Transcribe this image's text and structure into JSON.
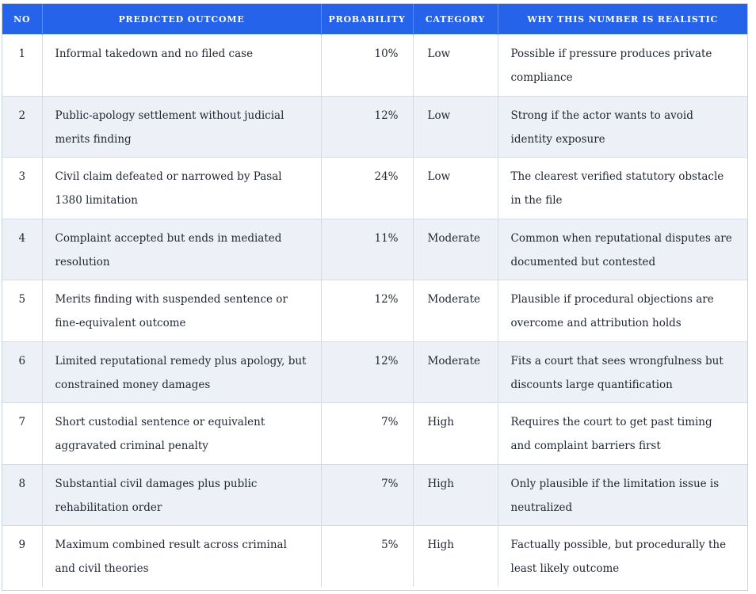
{
  "table": {
    "headers": [
      "NO",
      "PREDICTED OUTCOME",
      "PROBABILITY",
      "CATEGORY",
      "WHY THIS NUMBER IS REALISTIC"
    ],
    "rows": [
      {
        "no": "1",
        "outcome": "Informal takedown and no filed case",
        "probability": "10%",
        "category": "Low",
        "why": "Possible if pressure produces private compliance"
      },
      {
        "no": "2",
        "outcome": "Public-apology settlement without judicial merits finding",
        "probability": "12%",
        "category": "Low",
        "why": "Strong if the actor wants to avoid identity exposure"
      },
      {
        "no": "3",
        "outcome": "Civil claim defeated or narrowed by Pasal 1380 limitation",
        "probability": "24%",
        "category": "Low",
        "why": "The clearest verified statutory obstacle in the file"
      },
      {
        "no": "4",
        "outcome": "Complaint accepted but ends in mediated resolution",
        "probability": "11%",
        "category": "Moderate",
        "why": "Common when reputational disputes are documented but contested"
      },
      {
        "no": "5",
        "outcome": "Merits finding with suspended sentence or fine-equivalent outcome",
        "probability": "12%",
        "category": "Moderate",
        "why": "Plausible if procedural objections are overcome and attribution holds"
      },
      {
        "no": "6",
        "outcome": "Limited reputational remedy plus apology, but constrained money damages",
        "probability": "12%",
        "category": "Moderate",
        "why": "Fits a court that sees wrongfulness but discounts large quantification"
      },
      {
        "no": "7",
        "outcome": "Short custodial sentence or equivalent aggravated criminal penalty",
        "probability": "7%",
        "category": "High",
        "why": "Requires the court to get past timing and complaint barriers first"
      },
      {
        "no": "8",
        "outcome": "Substantial civil damages plus public rehabilitation order",
        "probability": "7%",
        "category": "High",
        "why": "Only plausible if the limitation issue is neutralized"
      },
      {
        "no": "9",
        "outcome": "Maximum combined result across criminal and civil theories",
        "probability": "5%",
        "category": "High",
        "why": "Factually possible, but procedurally the least likely outcome"
      }
    ]
  },
  "colors": {
    "header_bg": "#2563eb",
    "header_text": "#ffffff",
    "row_alt_bg": "#edf1f7",
    "border": "#d5dbe5",
    "body_text": "#1f2530"
  }
}
